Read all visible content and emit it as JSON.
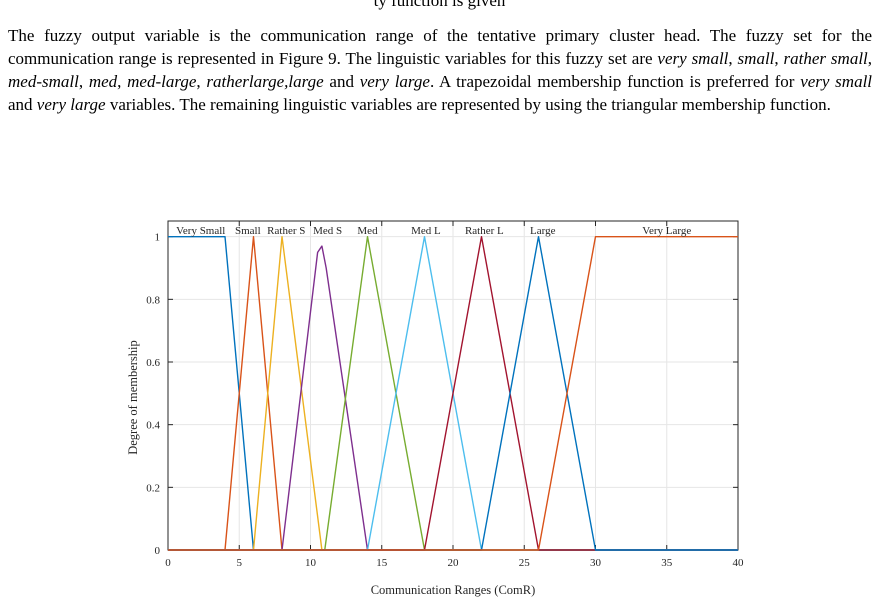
{
  "top_text": "ty function is given",
  "paragraph": {
    "p1": "The fuzzy output variable is the communication range of the tentative primary cluster head. The fuzzy set for the communication range is represented in Figure 9. The linguistic variables for this fuzzy set are ",
    "v1": "very small",
    "s1": ", ",
    "v2": "small",
    "s2": ", ",
    "v3": "rather small",
    "s3": ", ",
    "v4": "med-small",
    "s4": ", ",
    "v5": "med",
    "s5": ", ",
    "v6": "med-large",
    "s6": ", ",
    "v7": "ratherlarge,large",
    "s7": " and ",
    "v8": "very large",
    "s8": ". A trapezoidal membership function is preferred for ",
    "v9": "very small",
    "s9": " and ",
    "v10": "very large",
    "s10": " variables. The remaining linguistic variables are represented by using the triangular membership function."
  },
  "chart_data": {
    "type": "line",
    "title": "",
    "xlabel": "Communication Ranges (ComR)",
    "ylabel": "Degree of membership",
    "xlim": [
      0,
      40
    ],
    "ylim": [
      0,
      1.05
    ],
    "xticks": [
      0,
      5,
      10,
      15,
      20,
      25,
      30,
      35,
      40
    ],
    "yticks": [
      0,
      0.2,
      0.4,
      0.6,
      0.8,
      1
    ],
    "xtick_labels": [
      "0",
      "5",
      "10",
      "15",
      "20",
      "25",
      "30",
      "35",
      "40"
    ],
    "ytick_labels": [
      "0",
      "0.2",
      "0.4",
      "0.6",
      "0.8",
      "1"
    ],
    "grid": true,
    "series": [
      {
        "name": "Very Small",
        "label_x": 2.3,
        "color": "#0072BD",
        "points": [
          [
            0,
            1
          ],
          [
            4,
            1
          ],
          [
            6,
            0
          ],
          [
            40,
            0
          ]
        ]
      },
      {
        "name": "Small",
        "label_x": 5.6,
        "color": "#D95319",
        "points": [
          [
            0,
            0
          ],
          [
            4,
            0
          ],
          [
            6,
            1
          ],
          [
            8,
            0
          ],
          [
            40,
            0
          ]
        ]
      },
      {
        "name": "Rather S",
        "label_x": 8.3,
        "color": "#EDB120",
        "points": [
          [
            0,
            0
          ],
          [
            6,
            0
          ],
          [
            8,
            1
          ],
          [
            10.8,
            0
          ],
          [
            40,
            0
          ]
        ]
      },
      {
        "name": "Med S",
        "label_x": 11.2,
        "color": "#7E2F8E",
        "points": [
          [
            0,
            0
          ],
          [
            8,
            0
          ],
          [
            10.5,
            0.95
          ],
          [
            10.8,
            0.97
          ],
          [
            11.1,
            0.9
          ],
          [
            14,
            0
          ],
          [
            40,
            0
          ]
        ]
      },
      {
        "name": "Med",
        "label_x": 14,
        "color": "#77AC30",
        "points": [
          [
            0,
            0
          ],
          [
            11,
            0
          ],
          [
            14,
            1
          ],
          [
            18,
            0
          ],
          [
            40,
            0
          ]
        ]
      },
      {
        "name": "Med L",
        "label_x": 18.1,
        "color": "#4DBEEE",
        "points": [
          [
            0,
            0
          ],
          [
            14,
            0
          ],
          [
            18,
            1
          ],
          [
            22,
            0
          ],
          [
            40,
            0
          ]
        ]
      },
      {
        "name": "Rather L",
        "label_x": 22.2,
        "color": "#A2142F",
        "points": [
          [
            0,
            0
          ],
          [
            18,
            0
          ],
          [
            22,
            1
          ],
          [
            26,
            0
          ],
          [
            40,
            0
          ]
        ]
      },
      {
        "name": "Large",
        "label_x": 26.3,
        "color": "#0072BD",
        "points": [
          [
            0,
            0
          ],
          [
            22,
            0
          ],
          [
            26,
            1
          ],
          [
            30,
            0
          ],
          [
            40,
            0
          ]
        ]
      },
      {
        "name": "Very Large",
        "label_x": 35,
        "color": "#D95319",
        "points": [
          [
            0,
            0
          ],
          [
            26,
            0
          ],
          [
            30,
            1
          ],
          [
            40,
            1
          ]
        ]
      }
    ]
  }
}
